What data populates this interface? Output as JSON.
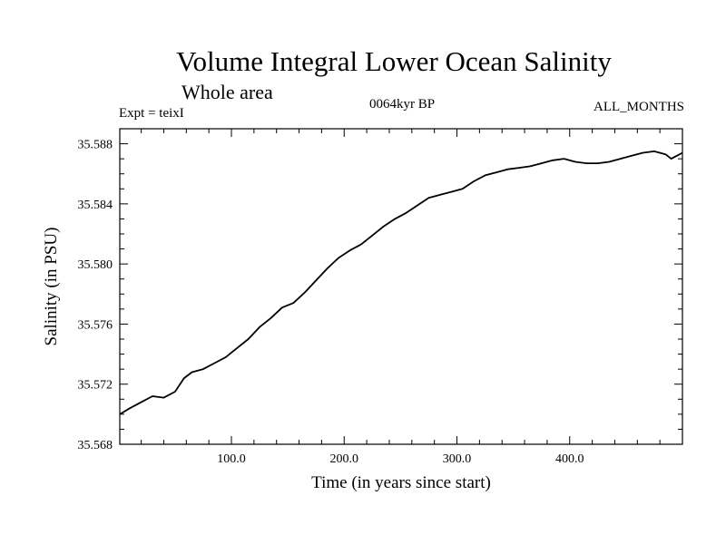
{
  "header": {
    "expt": "Expt = teixI",
    "period": "0064kyr BP",
    "months": "ALL_MONTHS"
  },
  "chart_data": {
    "type": "line",
    "title": "Volume Integral Lower Ocean Salinity",
    "subtitle": "Whole area",
    "xlabel": "Time (in years since start)",
    "ylabel": "Salinity (in PSU)",
    "xlim": [
      1,
      500
    ],
    "ylim": [
      35.568,
      35.589
    ],
    "x_ticks": [
      100,
      200,
      300,
      400
    ],
    "x_tick_labels": [
      "100.0",
      "200.0",
      "300.0",
      "400.0"
    ],
    "y_ticks": [
      35.568,
      35.572,
      35.576,
      35.58,
      35.584,
      35.588
    ],
    "y_tick_labels": [
      "35.568",
      "35.572",
      "35.576",
      "35.580",
      "35.584",
      "35.588"
    ],
    "grid": false,
    "series": [
      {
        "x": [
          1,
          10,
          20,
          30,
          40,
          50,
          58,
          65,
          75,
          85,
          95,
          105,
          115,
          125,
          135,
          145,
          155,
          165,
          175,
          185,
          195,
          205,
          215,
          225,
          235,
          245,
          255,
          265,
          275,
          285,
          295,
          305,
          315,
          325,
          335,
          345,
          355,
          365,
          375,
          385,
          395,
          405,
          415,
          425,
          435,
          445,
          455,
          465,
          475,
          485,
          490,
          495,
          500
        ],
        "y": [
          35.57,
          35.5704,
          35.5708,
          35.5712,
          35.5711,
          35.5715,
          35.5724,
          35.5728,
          35.573,
          35.5734,
          35.5738,
          35.5744,
          35.575,
          35.5758,
          35.5764,
          35.5771,
          35.5774,
          35.5781,
          35.5789,
          35.5797,
          35.5804,
          35.5809,
          35.5813,
          35.5819,
          35.5825,
          35.583,
          35.5834,
          35.5839,
          35.5844,
          35.5846,
          35.5848,
          35.585,
          35.5855,
          35.5859,
          35.5861,
          35.5863,
          35.5864,
          35.5865,
          35.5867,
          35.5869,
          35.587,
          35.5868,
          35.5867,
          35.5867,
          35.5868,
          35.587,
          35.5872,
          35.5874,
          35.5875,
          35.5873,
          35.587,
          35.5872,
          35.5874
        ]
      }
    ]
  }
}
